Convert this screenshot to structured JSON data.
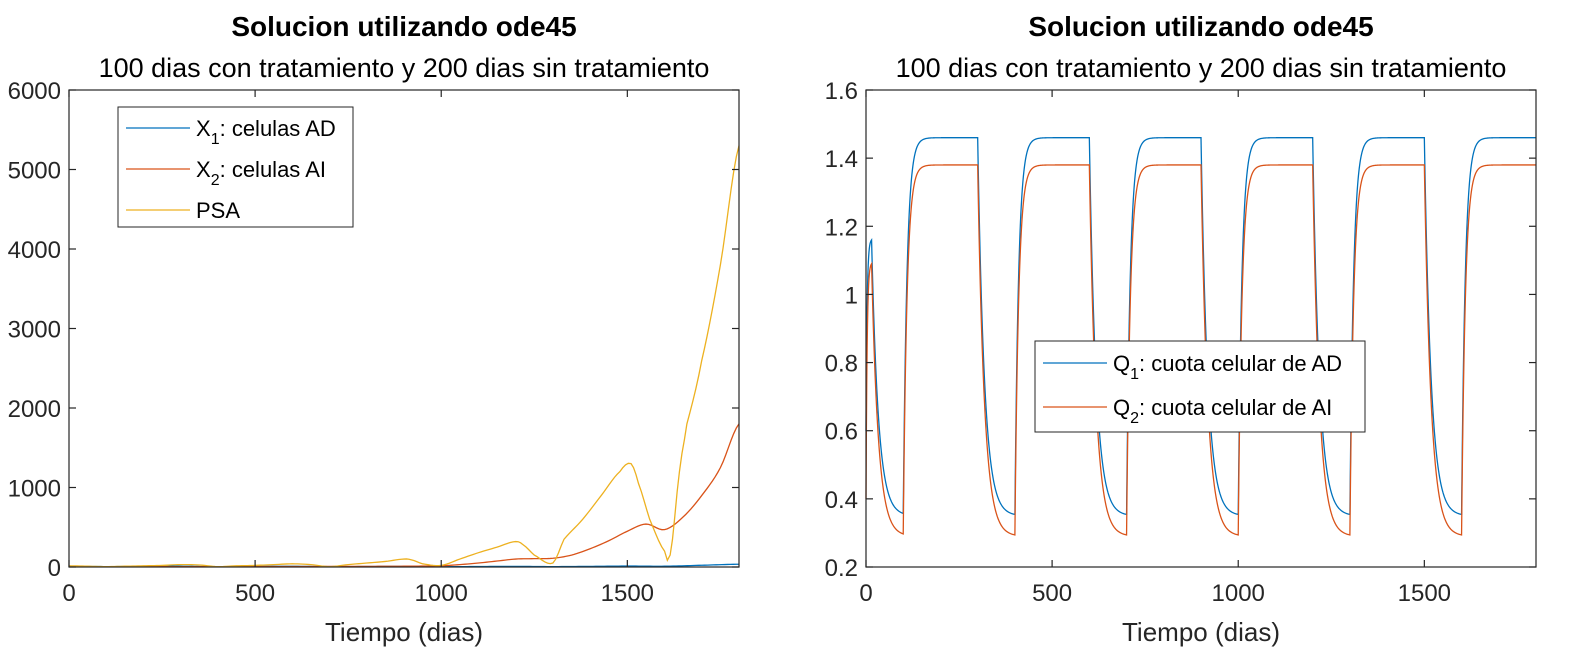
{
  "chart_data": [
    {
      "type": "line",
      "title": "Solucion utilizando ode45",
      "subtitle": "100 dias con tratamiento y 200 dias sin tratamiento",
      "xlabel": "Tiempo (dias)",
      "ylabel": "",
      "xlim": [
        0,
        1800
      ],
      "ylim": [
        0,
        6000
      ],
      "xticks": [
        0,
        500,
        1000,
        1500
      ],
      "yticks": [
        0,
        1000,
        2000,
        3000,
        4000,
        5000,
        6000
      ],
      "grid": false,
      "legend_position": "top-left",
      "series": [
        {
          "legend_main": "X",
          "legend_sub": "1",
          "legend_rest": ": celulas AD",
          "color": "#0072BD",
          "x": [
            0,
            100,
            200,
            300,
            400,
            500,
            600,
            700,
            800,
            900,
            1000,
            1100,
            1200,
            1300,
            1400,
            1500,
            1600,
            1700,
            1800
          ],
          "y": [
            10,
            5,
            8,
            10,
            4,
            7,
            9,
            4,
            6,
            8,
            4,
            6,
            8,
            5,
            8,
            12,
            10,
            22,
            35
          ]
        },
        {
          "legend_main": "X",
          "legend_sub": "2",
          "legend_rest": ": celulas AI",
          "color": "#D95319",
          "x": [
            0,
            100,
            200,
            300,
            400,
            500,
            600,
            700,
            800,
            900,
            1000,
            1050,
            1100,
            1150,
            1200,
            1250,
            1300,
            1350,
            1400,
            1450,
            1500,
            1550,
            1600,
            1650,
            1700,
            1750,
            1800
          ],
          "y": [
            5,
            5,
            5,
            5,
            5,
            6,
            6,
            7,
            8,
            10,
            15,
            30,
            50,
            75,
            100,
            105,
            110,
            150,
            230,
            330,
            450,
            540,
            470,
            630,
            900,
            1250,
            1800
          ]
        },
        {
          "legend_main": "PSA",
          "legend_sub": "",
          "legend_rest": "",
          "color": "#EDB120",
          "x": [
            0,
            50,
            100,
            150,
            200,
            250,
            300,
            350,
            400,
            450,
            500,
            550,
            600,
            650,
            700,
            750,
            800,
            850,
            900,
            920,
            950,
            1000,
            1050,
            1100,
            1150,
            1200,
            1220,
            1250,
            1300,
            1330,
            1380,
            1430,
            1480,
            1510,
            1530,
            1560,
            1600,
            1615,
            1640,
            1660,
            1700,
            1750,
            1800
          ],
          "y": [
            15,
            10,
            5,
            10,
            15,
            20,
            30,
            25,
            5,
            15,
            20,
            30,
            40,
            30,
            5,
            30,
            50,
            70,
            100,
            90,
            40,
            20,
            100,
            180,
            250,
            320,
            280,
            150,
            50,
            350,
            600,
            900,
            1200,
            1300,
            1050,
            600,
            200,
            150,
            1200,
            1800,
            2600,
            3800,
            5300
          ]
        }
      ]
    },
    {
      "type": "line",
      "title": "Solucion utilizando ode45",
      "subtitle": "100 dias con tratamiento y 200 dias sin tratamiento",
      "xlabel": "Tiempo (dias)",
      "ylabel": "",
      "xlim": [
        0,
        1800
      ],
      "ylim": [
        0.2,
        1.6
      ],
      "xticks": [
        0,
        500,
        1000,
        1500
      ],
      "yticks": [
        0.2,
        0.4,
        0.6,
        0.8,
        1,
        1.2,
        1.4,
        1.6
      ],
      "ytick_labels": [
        "0.2",
        "0.4",
        "0.6",
        "0.8",
        "1",
        "1.2",
        "1.4",
        "1.6"
      ],
      "grid": false,
      "legend_position": "center",
      "cycle_period": 300,
      "treatment_days": 100,
      "series": [
        {
          "legend_main": "Q",
          "legend_sub": "1",
          "legend_rest": ": cuota celular de AD",
          "color": "#0072BD",
          "start_value": 0.6,
          "peak_value": 1.16,
          "min_value": 0.35,
          "max_value": 1.46
        },
        {
          "legend_main": "Q",
          "legend_sub": "2",
          "legend_rest": ": cuota celular de AI",
          "color": "#D95319",
          "start_value": 0.4,
          "peak_value": 1.09,
          "min_value": 0.29,
          "max_value": 1.38
        }
      ]
    }
  ]
}
